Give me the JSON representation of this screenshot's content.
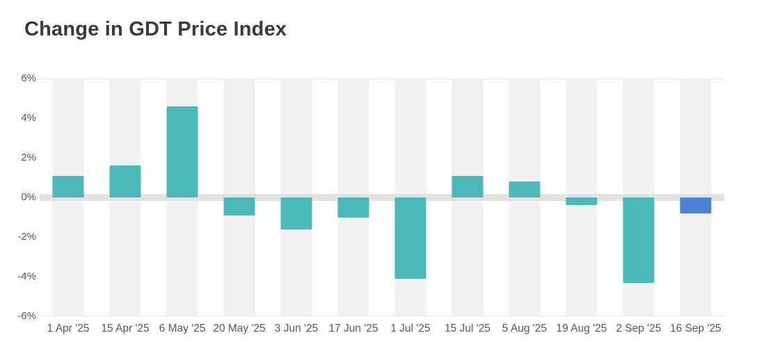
{
  "title": "Change in GDT Price Index",
  "chart_data": {
    "type": "bar",
    "title": "Change in GDT Price Index",
    "categories": [
      "1 Apr '25",
      "15 Apr '25",
      "6 May '25",
      "20 May '25",
      "3 Jun '25",
      "17 Jun '25",
      "1 Jul '25",
      "15 Jul '25",
      "5 Aug '25",
      "19 Aug '25",
      "2 Sep '25",
      "16 Sep '25"
    ],
    "values": [
      1.1,
      1.6,
      4.6,
      -0.9,
      -1.6,
      -1.0,
      -4.1,
      1.1,
      0.8,
      -0.4,
      -4.3,
      -0.8
    ],
    "xlabel": "",
    "ylabel": "",
    "ylim": [
      -6,
      6
    ],
    "y_ticks": [
      6,
      4,
      2,
      0,
      -2,
      -4,
      -6
    ],
    "y_tick_labels": [
      "6%",
      "4%",
      "2%",
      "0%",
      "-2%",
      "-4%",
      "-6%"
    ],
    "unit_suffix": "%",
    "grid": "column-stripes-only",
    "legend": "none",
    "colors": {
      "bar": "#4cb8b8",
      "highlight_bar": "#4d82d2",
      "stripe": "#f1f1f1",
      "zero_line": "#e2e2e2",
      "edge_line": "#e4e4e4",
      "title_text": "#3a3a3a",
      "axis_text": "#575757"
    },
    "highlight_index": 11
  }
}
